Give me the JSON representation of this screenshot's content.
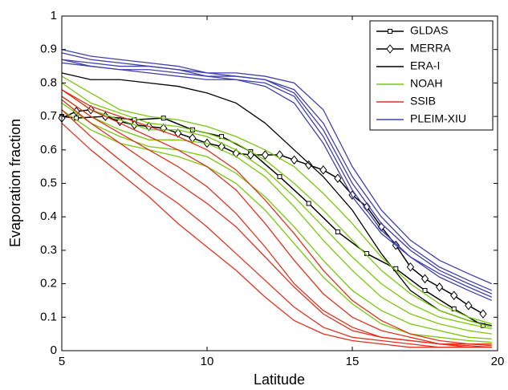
{
  "chart_data": {
    "type": "line",
    "xlabel": "Latitude",
    "ylabel": "Evaporation fraction",
    "xlim": [
      5,
      20
    ],
    "ylim": [
      0,
      1
    ],
    "xticks": [
      5,
      10,
      15,
      20
    ],
    "yticks": [
      0,
      0.1,
      0.2,
      0.3,
      0.4,
      0.5,
      0.6,
      0.7,
      0.8,
      0.9,
      1
    ],
    "grid": false,
    "legend": "upper right",
    "x": [
      5,
      6,
      7,
      8,
      9,
      10,
      11,
      12,
      13,
      14,
      15,
      16,
      17,
      18,
      19,
      19.8
    ],
    "series": [
      {
        "name": "GLDAS",
        "color": "#000000",
        "marker": "square",
        "x": [
          5,
          5.5,
          6.5,
          7.5,
          8.5,
          9.5,
          10.5,
          11.5,
          12.5,
          13.5,
          14.5,
          15.5,
          16.5,
          17.5,
          18.5,
          19.5
        ],
        "lines": [
          [
            0.7,
            0.695,
            0.7,
            0.69,
            0.695,
            0.66,
            0.64,
            0.595,
            0.52,
            0.44,
            0.355,
            0.29,
            0.245,
            0.18,
            0.125,
            0.075
          ]
        ]
      },
      {
        "name": "MERRA",
        "color": "#000000",
        "marker": "diamond",
        "x": [
          5,
          5.5,
          6,
          6.5,
          7,
          7.5,
          8,
          8.5,
          9,
          9.5,
          10,
          10.5,
          11,
          11.5,
          12,
          12.5,
          13,
          13.5,
          14,
          14.5,
          15,
          15.5,
          16,
          16.5,
          17,
          17.5,
          18,
          18.5,
          19,
          19.5
        ],
        "lines": [
          [
            0.695,
            0.715,
            0.72,
            0.7,
            0.685,
            0.675,
            0.67,
            0.665,
            0.65,
            0.635,
            0.62,
            0.61,
            0.59,
            0.585,
            0.585,
            0.585,
            0.57,
            0.555,
            0.54,
            0.515,
            0.465,
            0.43,
            0.37,
            0.315,
            0.25,
            0.215,
            0.19,
            0.165,
            0.135,
            0.11
          ]
        ]
      },
      {
        "name": "ERA-I",
        "color": "#000000",
        "lines": [
          [
            0.83,
            0.81,
            0.81,
            0.8,
            0.79,
            0.77,
            0.74,
            0.68,
            0.6,
            0.52,
            0.42,
            0.29,
            0.18,
            0.12,
            0.09,
            0.075
          ]
        ]
      },
      {
        "name": "NOAH",
        "color": "#7ac70c",
        "lines": [
          [
            0.82,
            0.77,
            0.72,
            0.7,
            0.69,
            0.67,
            0.64,
            0.6,
            0.55,
            0.47,
            0.38,
            0.28,
            0.2,
            0.14,
            0.1,
            0.08
          ],
          [
            0.8,
            0.74,
            0.71,
            0.68,
            0.67,
            0.65,
            0.62,
            0.57,
            0.5,
            0.42,
            0.33,
            0.24,
            0.17,
            0.12,
            0.09,
            0.07
          ],
          [
            0.78,
            0.72,
            0.69,
            0.66,
            0.66,
            0.64,
            0.6,
            0.54,
            0.46,
            0.37,
            0.28,
            0.2,
            0.14,
            0.1,
            0.08,
            0.065
          ],
          [
            0.76,
            0.7,
            0.66,
            0.63,
            0.63,
            0.62,
            0.58,
            0.52,
            0.43,
            0.33,
            0.24,
            0.16,
            0.11,
            0.08,
            0.06,
            0.05
          ],
          [
            0.74,
            0.68,
            0.64,
            0.61,
            0.6,
            0.58,
            0.53,
            0.46,
            0.37,
            0.27,
            0.18,
            0.12,
            0.08,
            0.06,
            0.04,
            0.035
          ],
          [
            0.72,
            0.66,
            0.62,
            0.6,
            0.58,
            0.55,
            0.5,
            0.42,
            0.32,
            0.22,
            0.14,
            0.08,
            0.05,
            0.04,
            0.03,
            0.025
          ]
        ]
      },
      {
        "name": "SSIB",
        "color": "#e0321e",
        "lines": [
          [
            0.78,
            0.73,
            0.7,
            0.67,
            0.64,
            0.6,
            0.54,
            0.45,
            0.35,
            0.24,
            0.15,
            0.09,
            0.05,
            0.03,
            0.02,
            0.02
          ],
          [
            0.78,
            0.72,
            0.68,
            0.64,
            0.6,
            0.55,
            0.48,
            0.38,
            0.27,
            0.17,
            0.1,
            0.06,
            0.04,
            0.02,
            0.02,
            0.015
          ],
          [
            0.76,
            0.7,
            0.65,
            0.6,
            0.55,
            0.49,
            0.41,
            0.31,
            0.2,
            0.12,
            0.07,
            0.04,
            0.03,
            0.02,
            0.015,
            0.01
          ],
          [
            0.75,
            0.68,
            0.62,
            0.56,
            0.5,
            0.44,
            0.37,
            0.28,
            0.19,
            0.11,
            0.06,
            0.04,
            0.03,
            0.02,
            0.01,
            0.01
          ],
          [
            0.72,
            0.64,
            0.57,
            0.5,
            0.44,
            0.37,
            0.29,
            0.21,
            0.13,
            0.07,
            0.04,
            0.03,
            0.02,
            0.01,
            0.01,
            0.01
          ],
          [
            0.68,
            0.6,
            0.53,
            0.46,
            0.38,
            0.31,
            0.24,
            0.16,
            0.09,
            0.05,
            0.03,
            0.02,
            0.01,
            0.01,
            0.01,
            0.01
          ]
        ]
      },
      {
        "name": "PLEIM-XIU",
        "color": "#4040b0",
        "lines": [
          [
            0.9,
            0.88,
            0.87,
            0.86,
            0.85,
            0.83,
            0.83,
            0.82,
            0.8,
            0.72,
            0.55,
            0.42,
            0.33,
            0.27,
            0.23,
            0.2
          ],
          [
            0.89,
            0.87,
            0.86,
            0.85,
            0.84,
            0.83,
            0.82,
            0.81,
            0.78,
            0.68,
            0.52,
            0.4,
            0.31,
            0.25,
            0.21,
            0.18
          ],
          [
            0.87,
            0.86,
            0.85,
            0.85,
            0.84,
            0.82,
            0.81,
            0.8,
            0.76,
            0.64,
            0.48,
            0.36,
            0.28,
            0.23,
            0.19,
            0.16
          ],
          [
            0.87,
            0.85,
            0.84,
            0.84,
            0.83,
            0.82,
            0.82,
            0.81,
            0.77,
            0.66,
            0.5,
            0.38,
            0.3,
            0.24,
            0.2,
            0.17
          ],
          [
            0.86,
            0.85,
            0.84,
            0.83,
            0.82,
            0.81,
            0.81,
            0.79,
            0.74,
            0.62,
            0.46,
            0.35,
            0.28,
            0.22,
            0.18,
            0.15
          ]
        ]
      }
    ]
  }
}
